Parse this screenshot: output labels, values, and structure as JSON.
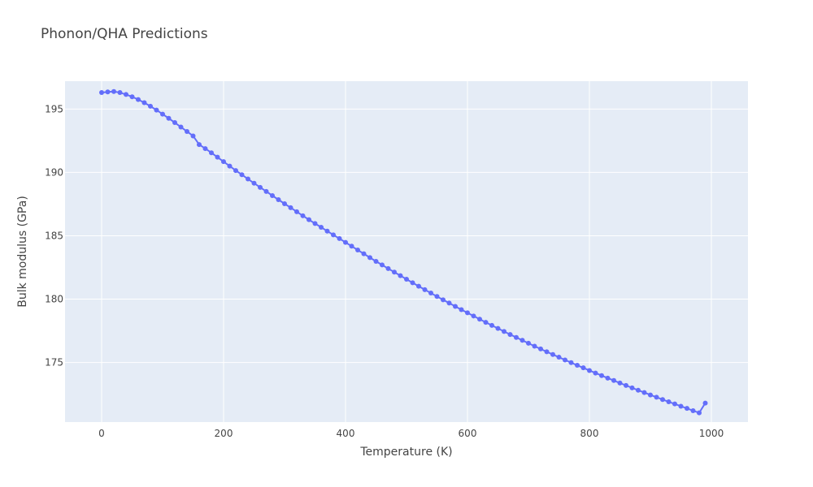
{
  "chart_data": {
    "type": "line",
    "title": "Phonon/QHA Predictions",
    "xlabel": "Temperature (K)",
    "ylabel": "Bulk modulus (GPa)",
    "xlim": [
      -60,
      1060
    ],
    "ylim": [
      170.3,
      197.2
    ],
    "xticks": [
      0,
      200,
      400,
      600,
      800,
      1000
    ],
    "yticks": [
      175,
      180,
      185,
      190,
      195
    ],
    "grid": true,
    "legend": "none",
    "colors": {
      "series": "#636efa",
      "plot_bg": "#e5ecf6",
      "grid": "#ffffff",
      "text": "#444444"
    },
    "series": [
      {
        "mode": "lines+markers",
        "x": [
          0,
          10,
          20,
          30,
          40,
          50,
          60,
          70,
          80,
          90,
          100,
          110,
          120,
          130,
          140,
          150,
          160,
          170,
          180,
          190,
          200,
          210,
          220,
          230,
          240,
          250,
          260,
          270,
          280,
          290,
          300,
          310,
          320,
          330,
          340,
          350,
          360,
          370,
          380,
          390,
          400,
          410,
          420,
          430,
          440,
          450,
          460,
          470,
          480,
          490,
          500,
          510,
          520,
          530,
          540,
          550,
          560,
          570,
          580,
          590,
          600,
          610,
          620,
          630,
          640,
          650,
          660,
          670,
          680,
          690,
          700,
          710,
          720,
          730,
          740,
          750,
          760,
          770,
          780,
          790,
          800,
          810,
          820,
          830,
          840,
          850,
          860,
          870,
          880,
          890,
          900,
          910,
          920,
          930,
          940,
          950,
          960,
          970,
          980,
          990
        ],
        "y": [
          196.3,
          196.35,
          196.38,
          196.3,
          196.15,
          195.97,
          195.75,
          195.5,
          195.22,
          194.92,
          194.6,
          194.27,
          193.93,
          193.58,
          193.23,
          192.88,
          192.2,
          191.88,
          191.55,
          191.2,
          190.85,
          190.5,
          190.15,
          189.82,
          189.48,
          189.15,
          188.82,
          188.5,
          188.17,
          187.85,
          187.53,
          187.22,
          186.9,
          186.58,
          186.27,
          185.97,
          185.67,
          185.37,
          185.07,
          184.78,
          184.48,
          184.18,
          183.88,
          183.58,
          183.28,
          182.98,
          182.7,
          182.41,
          182.13,
          181.85,
          181.57,
          181.29,
          181.02,
          180.75,
          180.48,
          180.21,
          179.95,
          179.69,
          179.43,
          179.17,
          178.92,
          178.67,
          178.42,
          178.17,
          177.93,
          177.69,
          177.45,
          177.21,
          176.98,
          176.75,
          176.52,
          176.29,
          176.07,
          175.85,
          175.63,
          175.42,
          175.2,
          174.99,
          174.78,
          174.58,
          174.37,
          174.17,
          173.97,
          173.77,
          173.58,
          173.38,
          173.19,
          173.0,
          172.81,
          172.63,
          172.44,
          172.26,
          172.08,
          171.9,
          171.73,
          171.55,
          171.38,
          171.2,
          171.03,
          171.8
        ]
      }
    ]
  }
}
